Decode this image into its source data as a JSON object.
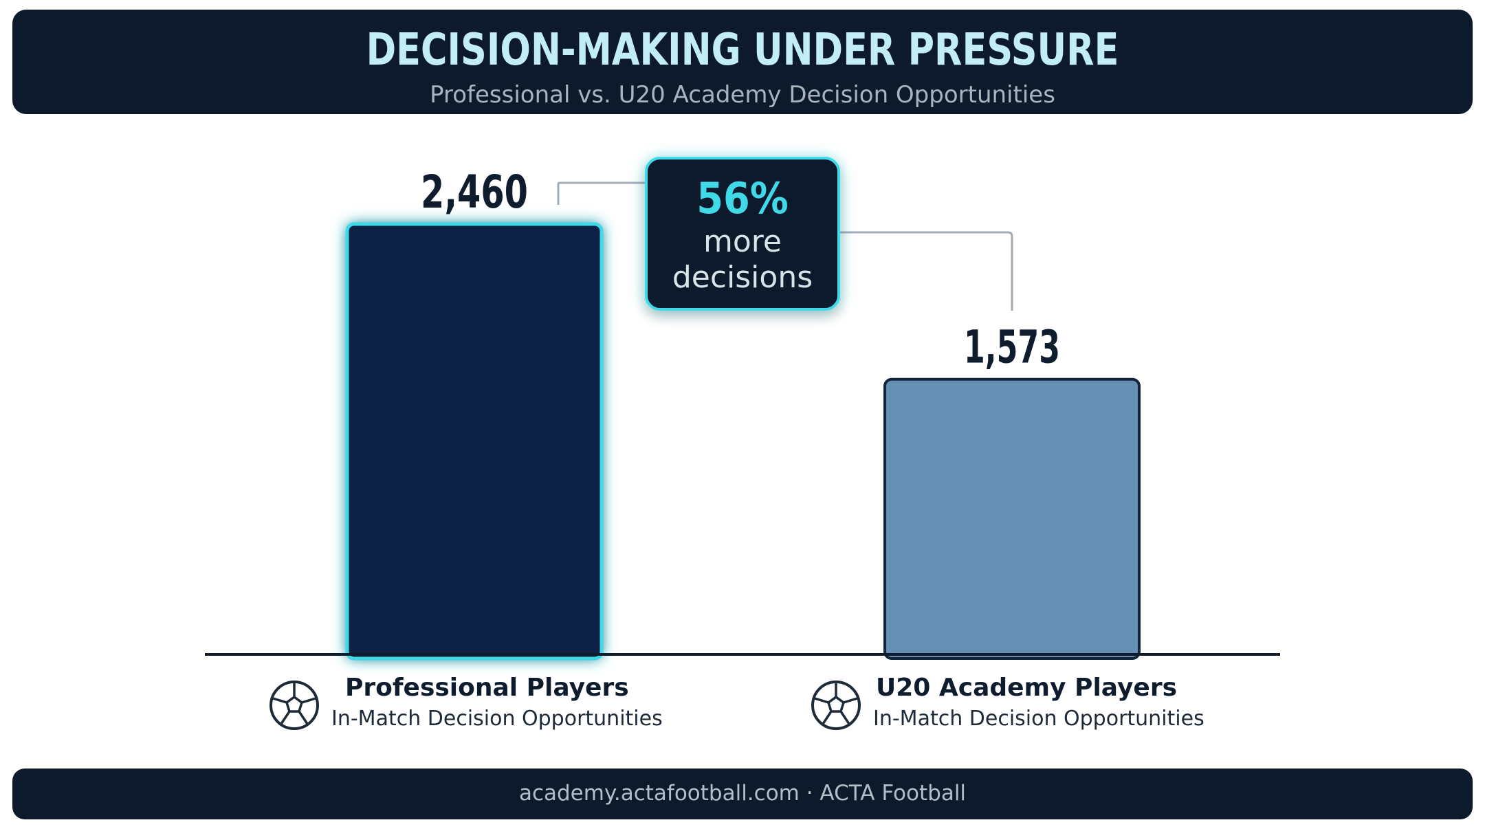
{
  "header": {
    "title": "DECISION-MAKING UNDER PRESSURE",
    "subtitle": "Professional vs. U20 Academy Decision Opportunities"
  },
  "chart_data": {
    "type": "bar",
    "title": "DECISION-MAKING UNDER PRESSURE",
    "subtitle": "Professional vs. U20 Academy Decision Opportunities",
    "categories": [
      "Professional Players",
      "U20 Academy Players"
    ],
    "category_sublabels": [
      "In-Match Decision Opportunities",
      "In-Match Decision Opportunities"
    ],
    "values": [
      2460,
      1573
    ],
    "value_labels": [
      "2,460",
      "1,573"
    ],
    "colors": [
      "#0d2244",
      "#6590b4"
    ],
    "highlight_color": "#3fd9e8",
    "ylim": [
      0,
      2460
    ],
    "grid": false,
    "legend": "none"
  },
  "callout": {
    "percent": "56%",
    "line1": "more",
    "line2": "decisions"
  },
  "footer": {
    "text": "academy.actafootball.com · ACTA Football"
  }
}
